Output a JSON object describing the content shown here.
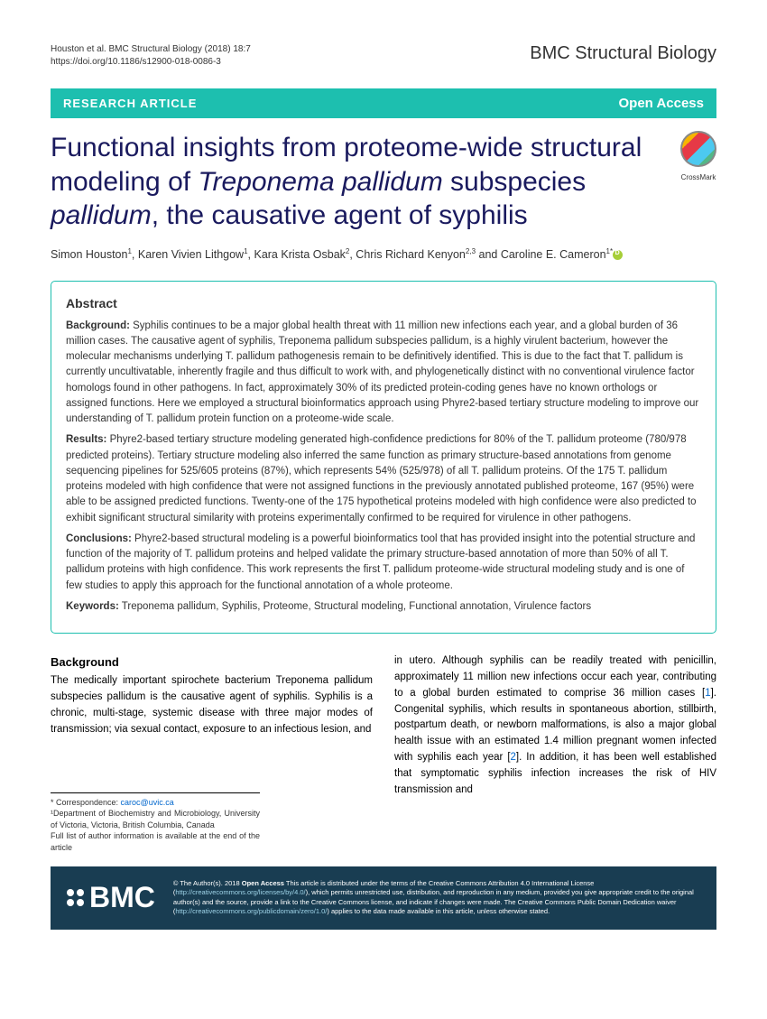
{
  "header": {
    "citation_line1": "Houston et al. BMC Structural Biology  (2018) 18:7",
    "citation_line2": "https://doi.org/10.1186/s12900-018-0086-3",
    "journal": "BMC Structural Biology"
  },
  "banner": {
    "left": "RESEARCH ARTICLE",
    "right": "Open Access"
  },
  "title": {
    "part1": "Functional insights from proteome-wide structural modeling of ",
    "italic1": "Treponema pallidum",
    "part2": " subspecies ",
    "italic2": "pallidum",
    "part3": ", the causative agent of syphilis"
  },
  "crossmark": "CrossMark",
  "authors": {
    "a1": "Simon Houston",
    "s1": "1",
    "a2": ", Karen Vivien Lithgow",
    "s2": "1",
    "a3": ", Kara Krista Osbak",
    "s3": "2",
    "a4": ", Chris Richard Kenyon",
    "s4": "2,3",
    "a5": " and Caroline E. Cameron",
    "s5": "1*"
  },
  "abstract": {
    "heading": "Abstract",
    "bg_label": "Background:",
    "bg_text": " Syphilis continues to be a major global health threat with 11 million new infections each year, and a global burden of 36 million cases. The causative agent of syphilis, Treponema pallidum subspecies pallidum, is a highly virulent bacterium, however the molecular mechanisms underlying T. pallidum pathogenesis remain to be definitively identified. This is due to the fact that T. pallidum is currently uncultivatable, inherently fragile and thus difficult to work with, and phylogenetically distinct with no conventional virulence factor homologs found in other pathogens. In fact, approximately 30% of its predicted protein-coding genes have no known orthologs or assigned functions. Here we employed a structural bioinformatics approach using Phyre2-based tertiary structure modeling to improve our understanding of T. pallidum protein function on a proteome-wide scale.",
    "res_label": "Results:",
    "res_text": " Phyre2-based tertiary structure modeling generated high-confidence predictions for 80% of the T. pallidum proteome (780/978 predicted proteins). Tertiary structure modeling also inferred the same function as primary structure-based annotations from genome sequencing pipelines for 525/605 proteins (87%), which represents 54% (525/978) of all T. pallidum proteins. Of the 175 T. pallidum proteins modeled with high confidence that were not assigned functions in the previously annotated published proteome, 167 (95%) were able to be assigned predicted functions. Twenty-one of the 175 hypothetical proteins modeled with high confidence were also predicted to exhibit significant structural similarity with proteins experimentally confirmed to be required for virulence in other pathogens.",
    "con_label": "Conclusions:",
    "con_text": " Phyre2-based structural modeling is a powerful bioinformatics tool that has provided insight into the potential structure and function of the majority of T. pallidum proteins and helped validate the primary structure-based annotation of more than 50% of all T. pallidum proteins with high confidence. This work represents the first T. pallidum proteome-wide structural modeling study and is one of few studies to apply this approach for the functional annotation of a whole proteome.",
    "kw_label": "Keywords:",
    "kw_text": " Treponema pallidum, Syphilis, Proteome, Structural modeling, Functional annotation, Virulence factors"
  },
  "body": {
    "heading": "Background",
    "col1": "The medically important spirochete bacterium Treponema pallidum subspecies pallidum is the causative agent of syphilis. Syphilis is a chronic, multi-stage, systemic disease with three major modes of transmission; via sexual contact, exposure to an infectious lesion, and",
    "col2_a": "in utero. Although syphilis can be readily treated with penicillin, approximately 11 million new infections occur each year, contributing to a global burden estimated to comprise 36 million cases [",
    "ref1": "1",
    "col2_b": "]. Congenital syphilis, which results in spontaneous abortion, stillbirth, postpartum death, or newborn malformations, is also a major global health issue with an estimated 1.4 million pregnant women infected with syphilis each year [",
    "ref2": "2",
    "col2_c": "]. In addition, it has been well established that symptomatic syphilis infection increases the risk of HIV transmission and"
  },
  "correspondence": {
    "line1_label": "* Correspondence: ",
    "line1_email": "caroc@uvic.ca",
    "line2": "¹Department of Biochemistry and Microbiology, University of Victoria, Victoria, British Columbia, Canada",
    "line3": "Full list of author information is available at the end of the article"
  },
  "footer": {
    "logo": "BMC",
    "text_a": "© The Author(s). 2018 ",
    "text_b": "Open Access",
    "text_c": " This article is distributed under the terms of the Creative Commons Attribution 4.0 International License (",
    "link1": "http://creativecommons.org/licenses/by/4.0/",
    "text_d": "), which permits unrestricted use, distribution, and reproduction in any medium, provided you give appropriate credit to the original author(s) and the source, provide a link to the Creative Commons license, and indicate if changes were made. The Creative Commons Public Domain Dedication waiver (",
    "link2": "http://creativecommons.org/publicdomain/zero/1.0/",
    "text_e": ") applies to the data made available in this article, unless otherwise stated."
  }
}
